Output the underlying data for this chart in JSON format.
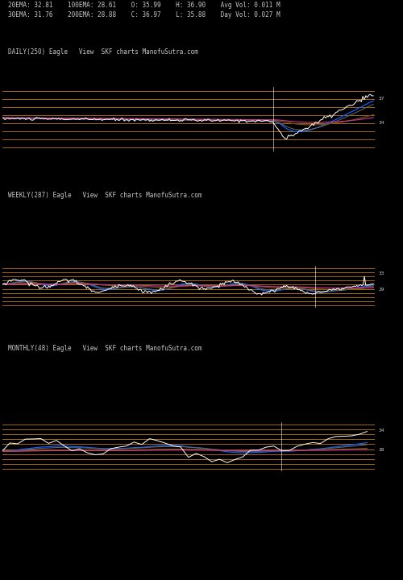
{
  "bg_color": "#000000",
  "text_color": "#c8c8c8",
  "fig_width": 5.0,
  "fig_height": 7.2,
  "dpi": 100,
  "header_line1": "20EMA: 32.81    100EMA: 28.61    O: 35.99    H: 36.90    Avg Vol: 0.011 M",
  "header_line2": "30EMA: 31.76    200EMA: 28.88    C: 36.97    L: 35.88    Day Vol: 0.027 M",
  "panel1_label": "DAILY(250) Eagle   View  SKF charts ManofuSutra.com",
  "panel2_label": "WEEKLY(287) Eagle   View  SKF charts ManofuSutra.com",
  "panel3_label": "MONTHLY(48) Eagle   View  SKF charts ManofuSutra.com",
  "orange_color": "#b07010",
  "blue_color": "#1060ff",
  "gray_color": "#606060",
  "brown_color": "#7a5500",
  "magenta_color": "#cc3399",
  "white_color": "#ffffff",
  "panel1_right_labels": [
    "37",
    "34"
  ],
  "panel2_right_labels": [
    "33",
    "29"
  ],
  "panel3_right_labels": [
    "34",
    "28"
  ]
}
